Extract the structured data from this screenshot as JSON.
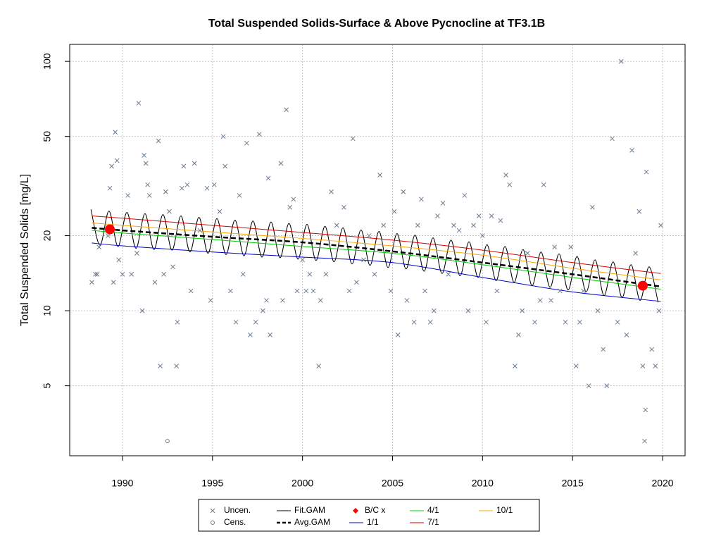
{
  "chart_data": {
    "type": "scatter",
    "title": "Total Suspended Solids-Surface & Above Pycnocline at TF3.1B",
    "y_label": "Total Suspended Solids [mg/L]",
    "xlim": [
      1987.07,
      2021.25
    ],
    "xticks": [
      1990,
      1995,
      2000,
      2005,
      2010,
      2015,
      2020
    ],
    "ylim": [
      2.62,
      117
    ],
    "yticks": [
      5,
      10,
      20,
      50,
      100
    ],
    "y_log": true,
    "grid": true,
    "legend": "bottom",
    "series": [
      {
        "name": "Uncen.",
        "color": "#6a7b8f",
        "marker": "x",
        "x": [
          1988.3,
          1988.5,
          1988.6,
          1988.7,
          1989.2,
          1989.3,
          1989.4,
          1989.5,
          1989.6,
          1989.7,
          1989.8,
          1990.0,
          1990.3,
          1990.5,
          1990.8,
          1990.9,
          1991.1,
          1991.2,
          1991.3,
          1991.4,
          1991.5,
          1991.8,
          1992.0,
          1992.1,
          1992.3,
          1992.4,
          1992.6,
          1992.8,
          1993.0,
          1993.05,
          1993.3,
          1993.4,
          1993.6,
          1993.8,
          1994.0,
          1994.3,
          1994.7,
          1994.9,
          1995.1,
          1995.4,
          1995.6,
          1995.7,
          1996.0,
          1996.3,
          1996.5,
          1996.7,
          1996.9,
          1997.1,
          1997.4,
          1997.6,
          1997.8,
          1998.0,
          1998.1,
          1998.2,
          1998.8,
          1998.9,
          1999.1,
          1999.3,
          1999.5,
          1999.7,
          2000.0,
          2000.2,
          2000.4,
          2000.6,
          2000.9,
          2001.0,
          2001.3,
          2001.6,
          2001.9,
          2002.3,
          2002.6,
          2002.8,
          2003.0,
          2003.4,
          2003.7,
          2004.0,
          2004.3,
          2004.5,
          2004.9,
          2005.1,
          2005.3,
          2005.6,
          2005.8,
          2006.2,
          2006.4,
          2006.6,
          2006.8,
          2007.1,
          2007.3,
          2007.5,
          2007.8,
          2008.1,
          2008.4,
          2008.7,
          2009.0,
          2009.2,
          2009.5,
          2009.8,
          2010.0,
          2010.2,
          2010.5,
          2010.8,
          2011.0,
          2011.3,
          2011.5,
          2011.8,
          2012.0,
          2012.2,
          2012.5,
          2012.9,
          2013.2,
          2013.4,
          2013.8,
          2014.0,
          2014.3,
          2014.6,
          2014.9,
          2015.2,
          2015.4,
          2015.6,
          2015.9,
          2016.1,
          2016.4,
          2016.7,
          2016.9,
          2017.2,
          2017.5,
          2017.7,
          2018.0,
          2018.3,
          2018.5,
          2018.7,
          2018.9,
          2019.0,
          2019.05,
          2019.1,
          2019.4,
          2019.6,
          2019.8,
          2019.9
        ],
        "values": [
          13,
          14,
          14,
          18,
          20,
          31,
          38,
          13,
          52,
          40,
          16,
          14,
          29,
          14,
          17,
          68,
          10,
          42,
          39,
          32,
          29,
          13,
          48,
          6,
          14,
          30,
          25,
          15,
          6,
          9,
          31,
          38,
          32,
          12,
          39,
          21,
          31,
          11,
          32,
          25,
          50,
          38,
          12,
          9,
          29,
          14,
          47,
          8,
          9,
          51,
          10,
          11,
          34,
          8,
          39,
          11,
          64,
          26,
          28,
          12,
          16,
          12,
          14,
          12,
          6,
          11,
          14,
          30,
          22,
          26,
          12,
          49,
          13,
          16,
          20,
          14,
          35,
          22,
          12,
          25,
          8,
          30,
          11,
          9,
          22,
          28,
          12,
          9,
          10,
          24,
          27,
          14,
          22,
          21,
          29,
          10,
          22,
          24,
          20,
          9,
          24,
          12,
          23,
          35,
          32,
          6,
          8,
          10,
          17,
          9,
          11,
          32,
          11,
          18,
          12,
          9,
          18,
          6,
          9,
          12,
          5,
          26,
          10,
          7,
          5,
          49,
          9,
          100,
          8,
          44,
          17,
          25,
          6,
          3,
          4,
          36,
          7,
          6,
          10,
          22
        ]
      },
      {
        "name": "Cens.",
        "color": "#6a7b8f",
        "marker": "o",
        "x": [
          1992.5
        ],
        "values": [
          3
        ]
      },
      {
        "name": "Fit.GAM",
        "color": "#000000",
        "line": "solid",
        "x": [
          1988.25,
          1988.75,
          1989.25,
          1989.75,
          1990.25,
          1990.75,
          1991.25,
          1991.75,
          1992.25,
          1992.75,
          1993.25,
          1993.75,
          1994.25,
          1994.75,
          1995.25,
          1995.75,
          1996.25,
          1996.75,
          1997.25,
          1997.75,
          1998.25,
          1998.75,
          1999.25,
          1999.75,
          2000.25,
          2000.75,
          2001.25,
          2001.75,
          2002.25,
          2002.75,
          2003.25,
          2003.75,
          2004.25,
          2004.75,
          2005.25,
          2005.75,
          2006.25,
          2006.75,
          2007.25,
          2007.75,
          2008.25,
          2008.75,
          2009.25,
          2009.75,
          2010.25,
          2010.75,
          2011.25,
          2011.75,
          2012.25,
          2012.75,
          2013.25,
          2013.75,
          2014.25,
          2014.75,
          2015.25,
          2015.75,
          2016.25,
          2016.75,
          2017.25,
          2017.75,
          2018.25,
          2018.75,
          2019.25,
          2019.75
        ],
        "values": [
          25.5,
          18.3,
          25.1,
          18.1,
          24.8,
          17.8,
          24.5,
          17.6,
          24.3,
          17.5,
          24.0,
          17.2,
          23.7,
          17.0,
          23.4,
          16.8,
          23.1,
          16.6,
          22.9,
          16.4,
          22.7,
          16.3,
          22.4,
          16.1,
          22.2,
          15.9,
          21.8,
          15.7,
          21.5,
          15.4,
          21.1,
          15.2,
          20.8,
          14.9,
          20.4,
          14.7,
          20.1,
          14.4,
          19.6,
          14.1,
          19.2,
          13.8,
          18.9,
          13.6,
          18.4,
          13.2,
          18.1,
          13.0,
          17.6,
          12.6,
          17.2,
          12.4,
          16.9,
          12.1,
          16.5,
          11.9,
          16.0,
          11.5,
          15.7,
          11.3,
          15.3,
          11.0,
          15.0,
          10.8
        ]
      },
      {
        "name": "Avg.GAM",
        "color": "#000000",
        "line": "dashed",
        "x": [
          1988.3,
          1990,
          1995,
          2000,
          2005,
          2010,
          2015,
          2019.9
        ],
        "values": [
          21.5,
          21.0,
          19.8,
          18.8,
          17.3,
          15.6,
          14.0,
          12.5
        ]
      },
      {
        "name": "B/C x",
        "color": "#ff0000",
        "marker": "bc",
        "x": [
          1989.3,
          2018.9
        ],
        "values": [
          21.2,
          12.6
        ]
      },
      {
        "name": "1/1",
        "color": "#0000cd",
        "line": "solid",
        "x": [
          1988.3,
          1990,
          1995,
          2000,
          2005,
          2010,
          2015,
          2019.9
        ],
        "values": [
          18.7,
          18.2,
          17.2,
          16.4,
          15.6,
          13.6,
          11.9,
          10.9
        ]
      },
      {
        "name": "4/1",
        "color": "#00cc00",
        "line": "solid",
        "x": [
          1988.3,
          1990,
          1995,
          2000,
          2005,
          2010,
          2015,
          2019.9
        ],
        "values": [
          21.0,
          20.5,
          19.3,
          18.1,
          17.0,
          15.3,
          13.6,
          12.2
        ]
      },
      {
        "name": "7/1",
        "color": "#dd0000",
        "line": "solid",
        "x": [
          1988.3,
          1990,
          1995,
          2000,
          2005,
          2010,
          2015,
          2019.9
        ],
        "values": [
          24.0,
          23.5,
          22.0,
          20.6,
          19.2,
          17.5,
          15.6,
          14.1
        ]
      },
      {
        "name": "10/1",
        "color": "#ffa500",
        "line": "solid",
        "x": [
          1988.3,
          1990,
          1995,
          2000,
          2005,
          2010,
          2015,
          2019.9
        ],
        "values": [
          22.5,
          22.0,
          20.7,
          19.5,
          18.2,
          16.7,
          14.8,
          13.3
        ]
      }
    ]
  }
}
